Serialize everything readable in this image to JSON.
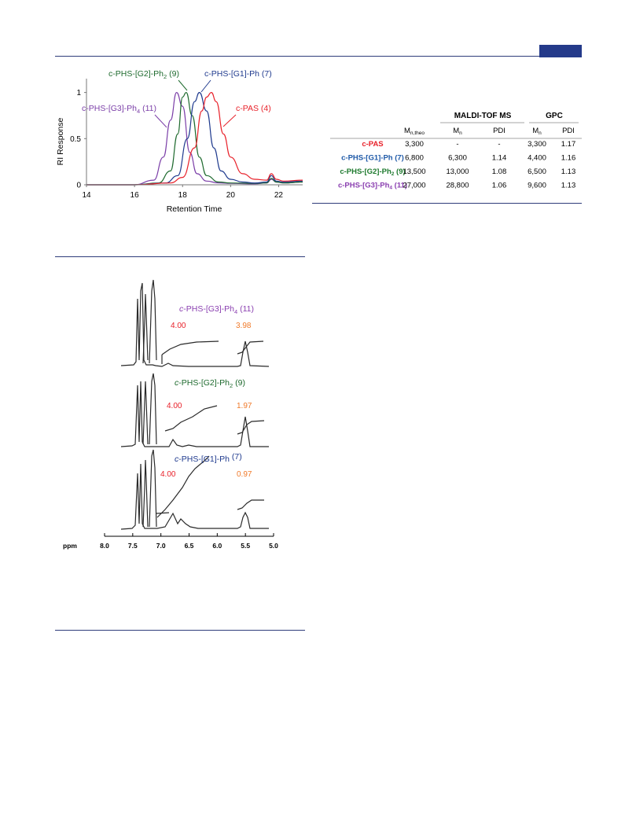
{
  "gpc_chart": {
    "chart_data": {
      "type": "line",
      "xlabel": "Retention Time",
      "ylabel": "RI Response",
      "xlim": [
        14,
        23
      ],
      "ylim": [
        0,
        1.15
      ],
      "xticks": [
        "14",
        "16",
        "18",
        "20",
        "22"
      ],
      "yticks": [
        "0",
        "0.5",
        "1"
      ],
      "series": [
        {
          "name": "c-PHS-[G3]-Ph4 (11)",
          "color": "#7b3fa8",
          "x": [
            14,
            16,
            16.8,
            17.2,
            17.5,
            17.75,
            18.0,
            18.3,
            18.6,
            19.0,
            19.5,
            20,
            21,
            21.5,
            21.7,
            21.9,
            22.2,
            23
          ],
          "y": [
            0,
            0,
            0.05,
            0.3,
            0.7,
            1.0,
            0.85,
            0.35,
            0.12,
            0.04,
            0.02,
            0.015,
            0.01,
            0.02,
            0.06,
            0.03,
            0.02,
            0.03
          ]
        },
        {
          "name": "c-PHS-[G2]-Ph2 (9)",
          "color": "#1e6a2e",
          "x": [
            14,
            16,
            17,
            17.5,
            17.8,
            18.0,
            18.15,
            18.4,
            18.7,
            19.0,
            19.5,
            20,
            21,
            21.5,
            21.7,
            21.9,
            22.2,
            23
          ],
          "y": [
            0,
            0,
            0.02,
            0.15,
            0.55,
            0.95,
            1.0,
            0.75,
            0.3,
            0.1,
            0.03,
            0.02,
            0.015,
            0.02,
            0.07,
            0.03,
            0.02,
            0.03
          ]
        },
        {
          "name": "c-PHS-[G1]-Ph (7)",
          "color": "#1f3a8e",
          "x": [
            14,
            16,
            17.3,
            17.8,
            18.2,
            18.5,
            18.7,
            19.0,
            19.3,
            19.6,
            20.0,
            20.5,
            21,
            21.5,
            21.7,
            21.9,
            22.2,
            23
          ],
          "y": [
            0,
            0,
            0.02,
            0.1,
            0.5,
            0.9,
            1.0,
            0.8,
            0.4,
            0.15,
            0.06,
            0.03,
            0.02,
            0.03,
            0.1,
            0.04,
            0.03,
            0.04
          ]
        },
        {
          "name": "c-PAS (4)",
          "color": "#e8212a",
          "x": [
            14,
            16,
            17.5,
            18.0,
            18.5,
            18.8,
            19.0,
            19.2,
            19.4,
            19.7,
            20.0,
            20.5,
            21,
            21.5,
            21.7,
            21.9,
            22.2,
            23
          ],
          "y": [
            0,
            0,
            0.02,
            0.08,
            0.4,
            0.8,
            0.95,
            1.0,
            0.9,
            0.55,
            0.3,
            0.12,
            0.06,
            0.05,
            0.12,
            0.06,
            0.04,
            0.05
          ]
        }
      ]
    }
  },
  "table": {
    "group_headers": [
      "MALDI-TOF MS",
      "GPC"
    ],
    "subheaders": [
      "M",
      "n,theo",
      "M",
      "n",
      "PDI",
      "M",
      "n",
      "PDI"
    ],
    "rows": [
      {
        "name": "c-PAS",
        "sub": "",
        "suffix": "",
        "color": "#e8212a",
        "cells": [
          "3,300",
          "-",
          "-",
          "3,300",
          "1.17"
        ]
      },
      {
        "name": "c-PHS-[G1]-Ph (7)",
        "sub": "",
        "suffix": "",
        "color": "#1f5aa8",
        "cells": [
          "6,800",
          "6,300",
          "1.14",
          "4,400",
          "1.16"
        ]
      },
      {
        "name": "c-PHS-[G2]-Ph",
        "sub": "2",
        "suffix": " (9)",
        "color": "#1e7a2e",
        "cells": [
          "13,500",
          "13,000",
          "1.08",
          "6,500",
          "1.13"
        ]
      },
      {
        "name": "c-PHS-[G3]-Ph",
        "sub": "4",
        "suffix": " (11)",
        "color": "#8a3fb0",
        "cells": [
          "27,000",
          "28,800",
          "1.06",
          "9,600",
          "1.13"
        ]
      }
    ]
  },
  "nmr": {
    "axis_label": "ppm",
    "ticks": [
      "8.0",
      "7.5",
      "7.0",
      "6.5",
      "6.0",
      "5.5",
      "5.0"
    ],
    "spectra": [
      {
        "label_prefix": "c",
        "label_main": "-PHS-[G3]-Ph",
        "label_sub": "4",
        "label_suffix": " (11)",
        "color": "#8a3fb0",
        "integral_left": "4.00",
        "integral_right": "3.98"
      },
      {
        "label_prefix": "c",
        "label_main": "-PHS-[G2]-Ph",
        "label_sub": "2",
        "label_suffix": " (9)",
        "color": "#1e6a2e",
        "integral_left": "4.00",
        "integral_right": "1.97"
      },
      {
        "label_prefix": "c",
        "label_main": "-PHS-[G1]-Ph",
        "label_sub": "",
        "label_suffix": " (7)",
        "color": "#1f3a8e",
        "integral_left": "4.00",
        "integral_right": "0.97"
      }
    ],
    "integral_left_color": "#e8212a",
    "integral_right_color": "#f07a2a"
  }
}
